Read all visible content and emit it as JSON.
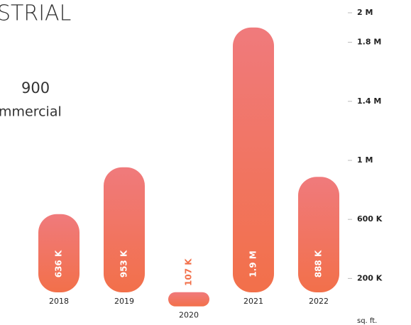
{
  "chart_data": {
    "type": "bar",
    "title": "STRIAL",
    "subtitle": "900",
    "annotation": "mmercial",
    "y_label": "sq. ft.",
    "categories": [
      "2018",
      "2019",
      "2020",
      "2021",
      "2022"
    ],
    "values": [
      636000,
      953000,
      107000,
      1900000,
      888000
    ],
    "value_labels": [
      "636 K",
      "953 K",
      "107 K",
      "1.9 M",
      "888 K"
    ],
    "color_top": "#f07a7c",
    "color_bottom": "#f2704a",
    "ylim": [
      0,
      2000000
    ],
    "yticks": [
      {
        "value": 2000000,
        "label": "2 M"
      },
      {
        "value": 1800000,
        "label": "1.8 M"
      },
      {
        "value": 1400000,
        "label": "1.4 M"
      },
      {
        "value": 1000000,
        "label": "1 M"
      },
      {
        "value": 600000,
        "label": "600 K"
      },
      {
        "value": 200000,
        "label": "200 K"
      }
    ]
  }
}
